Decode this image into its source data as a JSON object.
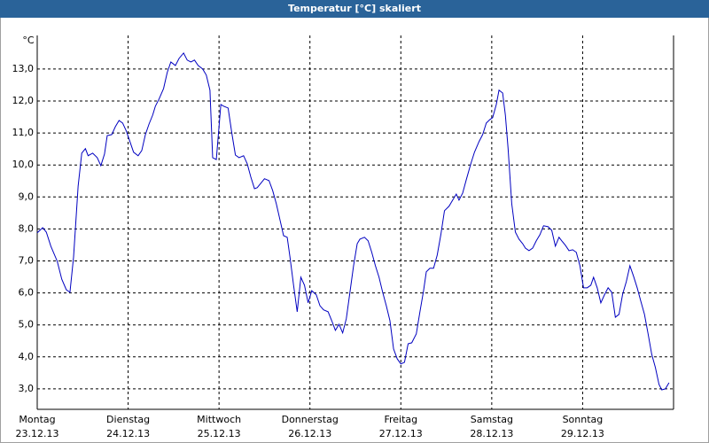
{
  "chart_data": {
    "type": "line",
    "title": "Temperatur [°C] skaliert",
    "y_label": "°C",
    "x": [
      0,
      0.06,
      0.1,
      0.15,
      0.22,
      0.27,
      0.32,
      0.36,
      0.4,
      0.45,
      0.49,
      0.53,
      0.56,
      0.61,
      0.66,
      0.7,
      0.74,
      0.77,
      0.82,
      0.86,
      0.9,
      0.94,
      0.98,
      1.02,
      1.06,
      1.11,
      1.15,
      1.19,
      1.23,
      1.27,
      1.3,
      1.34,
      1.39,
      1.43,
      1.47,
      1.52,
      1.56,
      1.61,
      1.65,
      1.69,
      1.73,
      1.77,
      1.82,
      1.86,
      1.9,
      1.93,
      1.97,
      2.02,
      2.05,
      2.1,
      2.14,
      2.18,
      2.22,
      2.27,
      2.31,
      2.35,
      2.39,
      2.42,
      2.46,
      2.5,
      2.55,
      2.59,
      2.63,
      2.67,
      2.71,
      2.75,
      2.78,
      2.82,
      2.86,
      2.9,
      2.94,
      2.98,
      3.02,
      3.07,
      3.11,
      3.15,
      3.2,
      3.24,
      3.28,
      3.32,
      3.36,
      3.4,
      3.44,
      3.48,
      3.52,
      3.55,
      3.6,
      3.64,
      3.68,
      3.72,
      3.76,
      3.8,
      3.84,
      3.88,
      3.92,
      3.96,
      4.0,
      4.04,
      4.08,
      4.12,
      4.17,
      4.21,
      4.25,
      4.28,
      4.32,
      4.36,
      4.4,
      4.44,
      4.48,
      4.53,
      4.57,
      4.61,
      4.64,
      4.68,
      4.72,
      4.77,
      4.81,
      4.86,
      4.9,
      4.94,
      4.98,
      5.01,
      5.05,
      5.08,
      5.12,
      5.15,
      5.18,
      5.22,
      5.26,
      5.3,
      5.34,
      5.37,
      5.41,
      5.45,
      5.49,
      5.53,
      5.57,
      5.62,
      5.66,
      5.7,
      5.74,
      5.77,
      5.81,
      5.85,
      5.89,
      5.93,
      5.97,
      6.01,
      6.05,
      6.09,
      6.12,
      6.16,
      6.2,
      6.24,
      6.28,
      6.32,
      6.36,
      6.4,
      6.44,
      6.48,
      6.52,
      6.56,
      6.6,
      6.64,
      6.68,
      6.72,
      6.76,
      6.8,
      6.84,
      6.87,
      6.91,
      6.95
    ],
    "series": [
      {
        "color": "#0000c0",
        "values": [
          7.88,
          8.04,
          7.9,
          7.46,
          6.99,
          6.43,
          6.1,
          6.02,
          7.13,
          9.34,
          10.37,
          10.51,
          10.29,
          10.37,
          10.23,
          9.98,
          10.34,
          10.92,
          10.95,
          11.2,
          11.39,
          11.31,
          11.06,
          10.73,
          10.4,
          10.29,
          10.45,
          10.95,
          11.28,
          11.56,
          11.84,
          12.06,
          12.39,
          12.89,
          13.22,
          13.11,
          13.33,
          13.5,
          13.28,
          13.22,
          13.28,
          13.11,
          13.0,
          12.81,
          12.34,
          10.23,
          10.17,
          11.89,
          11.84,
          11.78,
          11.01,
          10.31,
          10.23,
          10.29,
          10.04,
          9.62,
          9.26,
          9.29,
          9.43,
          9.57,
          9.51,
          9.2,
          8.79,
          8.29,
          7.79,
          7.74,
          7.13,
          6.24,
          5.41,
          6.49,
          6.24,
          5.69,
          6.07,
          5.94,
          5.6,
          5.47,
          5.41,
          5.13,
          4.83,
          5.02,
          4.75,
          5.19,
          6.02,
          6.85,
          7.54,
          7.68,
          7.74,
          7.63,
          7.27,
          6.85,
          6.49,
          6.02,
          5.6,
          5.13,
          4.25,
          3.94,
          3.78,
          3.83,
          4.41,
          4.44,
          4.72,
          5.41,
          6.07,
          6.66,
          6.77,
          6.77,
          7.18,
          7.82,
          8.57,
          8.71,
          8.9,
          9.09,
          8.9,
          9.12,
          9.54,
          10.04,
          10.4,
          10.73,
          10.95,
          11.31,
          11.42,
          11.48,
          11.89,
          12.34,
          12.25,
          11.56,
          10.51,
          8.79,
          7.9,
          7.68,
          7.54,
          7.4,
          7.32,
          7.4,
          7.63,
          7.82,
          8.1,
          8.07,
          7.96,
          7.46,
          7.74,
          7.63,
          7.49,
          7.32,
          7.35,
          7.27,
          6.85,
          6.16,
          6.16,
          6.24,
          6.49,
          6.16,
          5.69,
          5.94,
          6.16,
          6.02,
          5.24,
          5.33,
          5.96,
          6.35,
          6.85,
          6.52,
          6.16,
          5.74,
          5.33,
          4.72,
          4.08,
          3.67,
          3.14,
          2.97,
          3.0,
          3.19
        ]
      }
    ],
    "xlim": [
      0,
      7
    ],
    "xticks": [
      {
        "value": 0,
        "label": "Montag"
      },
      {
        "value": 1,
        "label": "Dienstag"
      },
      {
        "value": 2,
        "label": "Mittwoch"
      },
      {
        "value": 3,
        "label": "Donnerstag"
      },
      {
        "value": 4,
        "label": "Freitag"
      },
      {
        "value": 5,
        "label": "Samstag"
      },
      {
        "value": 6,
        "label": "Sonntag"
      }
    ],
    "x_tick_dates": [
      "23.12.13",
      "24.12.13",
      "25.12.13",
      "26.12.13",
      "27.12.13",
      "28.12.13",
      "29.12.13"
    ],
    "ylim": [
      2.36,
      14.05
    ],
    "yticks": [
      {
        "value": 3,
        "label": "3,0"
      },
      {
        "value": 4,
        "label": "4,0"
      },
      {
        "value": 5,
        "label": "5,0"
      },
      {
        "value": 6,
        "label": "6,0"
      },
      {
        "value": 7,
        "label": "7,0"
      },
      {
        "value": 8,
        "label": "8,0"
      },
      {
        "value": 9,
        "label": "9,0"
      },
      {
        "value": 10,
        "label": "10,0"
      },
      {
        "value": 11,
        "label": "11,0"
      },
      {
        "value": 12,
        "label": "12,0"
      },
      {
        "value": 13,
        "label": "13,0"
      }
    ],
    "grid": true
  }
}
